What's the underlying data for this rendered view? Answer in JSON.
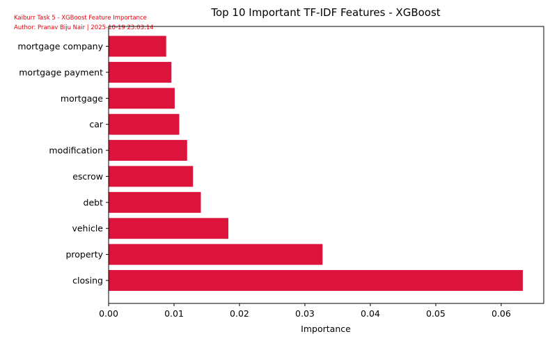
{
  "watermark": {
    "line1": "Kaiburr Task 5 - XGBoost Feature Importance",
    "line2": "Author: Pranav Biju Nair | 2025-10-19 23:03:14"
  },
  "colors": {
    "bar": "#dc143c",
    "watermark": "#e8000b"
  },
  "chart_data": {
    "type": "bar",
    "orientation": "horizontal",
    "title": "Top 10 Important TF-IDF Features - XGBoost",
    "xlabel": "Importance",
    "ylabel": "",
    "xlim": [
      0,
      0.0665
    ],
    "xticks": [
      0.0,
      0.01,
      0.02,
      0.03,
      0.04,
      0.05,
      0.06
    ],
    "xtick_labels": [
      "0.00",
      "0.01",
      "0.02",
      "0.03",
      "0.04",
      "0.05",
      "0.06"
    ],
    "grid": false,
    "categories": [
      "mortgage company",
      "mortgage payment",
      "mortgage",
      "car",
      "modification",
      "escrow",
      "debt",
      "vehicle",
      "property",
      "closing"
    ],
    "values": [
      0.0088,
      0.0096,
      0.0101,
      0.0108,
      0.012,
      0.0129,
      0.0141,
      0.0183,
      0.0327,
      0.0633
    ]
  }
}
